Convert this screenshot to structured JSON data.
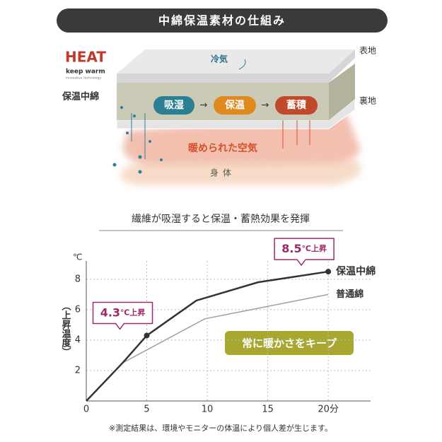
{
  "header": {
    "title": "中綿保温素材の仕組み"
  },
  "logo": {
    "brand": "HEAT",
    "tagline": "keep warm",
    "subline": "innovative technology"
  },
  "diagram": {
    "insulation_label": "保温中綿",
    "outer_label": "表地",
    "lining_label": "裏地",
    "cold_air": "冷気",
    "steps": [
      "吸湿",
      "保温",
      "蓄積"
    ],
    "warm_air": "暖められた空気",
    "body": "身体"
  },
  "chart_data": {
    "type": "line",
    "title": "繊維が吸湿すると保温・蓄熱効果を発揮",
    "y_unit": "℃",
    "y_label": "（上昇温度）",
    "xlim": [
      0,
      23.5
    ],
    "xticks": [
      0,
      5,
      10,
      15,
      {
        "value": 20,
        "label": "20分"
      }
    ],
    "ylim": [
      0,
      9.2
    ],
    "yticks": [
      2,
      4,
      6,
      8
    ],
    "grid": true,
    "series": [
      {
        "name": "保温中綿",
        "color": "#333333",
        "x": [
          0,
          3,
          5,
          9.1,
          14.2,
          20
        ],
        "values": [
          0,
          2.5,
          4.3,
          6.6,
          7.8,
          8.5
        ]
      },
      {
        "name": "普通綿",
        "color": "#a0a0a0",
        "x": [
          0,
          3,
          9.8,
          20
        ],
        "values": [
          0,
          2.5,
          5.4,
          7.0
        ]
      }
    ],
    "annotations": [
      {
        "x": 5,
        "y": 4.3,
        "label": "4.3",
        "suffix": "℃上昇"
      },
      {
        "x": 20,
        "y": 8.5,
        "label": "8.5",
        "suffix": "℃上昇"
      }
    ],
    "badge": "常に暖かさをキープ",
    "footnote": "※測定結果は、環境やモニターの体温により個人差が生じます。"
  }
}
